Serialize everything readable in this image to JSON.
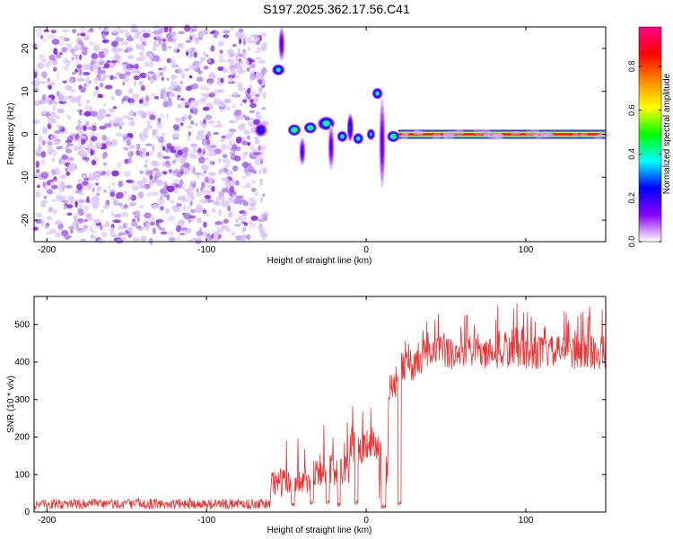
{
  "page": {
    "title": "S197.2025.362.17.56.C41"
  },
  "chart_data": [
    {
      "id": "spectrogram",
      "type": "heatmap",
      "xlabel": "Height of straight line (km)",
      "ylabel": "Frequency (Hz)",
      "xlim": [
        -208,
        150
      ],
      "ylim": [
        -25,
        25
      ],
      "xticks": [
        -200,
        -100,
        0,
        100
      ],
      "yticks": [
        -20,
        -10,
        0,
        10,
        20
      ],
      "colorbar": {
        "label": "Normalized spectral amplitude",
        "range": [
          0,
          0.98
        ],
        "ticks": [
          "0.0",
          "0.2",
          "0.4",
          "0.6",
          "0.8"
        ],
        "tick_values": [
          0,
          0.2,
          0.4,
          0.6,
          0.8
        ],
        "colors": [
          "#ffffff",
          "#8800ff",
          "#0000ff",
          "#00ffff",
          "#00ff00",
          "#ffff00",
          "#ff8800",
          "#ff0000",
          "#ff0088"
        ]
      },
      "noise_region": {
        "x": [
          -208,
          -63
        ],
        "y": [
          -25,
          25
        ],
        "amplitude": 0.2
      },
      "tone": {
        "x": [
          20,
          150
        ],
        "frequency": 0.0,
        "amplitude": 0.9
      },
      "blobs": [
        {
          "x": -66,
          "y": 1.0,
          "amp": 0.3,
          "sx": 3,
          "sy": 1.2
        },
        {
          "x": -55,
          "y": 15,
          "amp": 0.45,
          "sx": 3,
          "sy": 1.0
        },
        {
          "x": -53,
          "y": 21,
          "amp": 0.2,
          "sx": 1.5,
          "sy": 3
        },
        {
          "x": -45,
          "y": 1.0,
          "amp": 0.6,
          "sx": 3,
          "sy": 1.0
        },
        {
          "x": -40,
          "y": -4,
          "amp": 0.2,
          "sx": 1.5,
          "sy": 2.5
        },
        {
          "x": -35,
          "y": 1.5,
          "amp": 0.55,
          "sx": 3,
          "sy": 1.0
        },
        {
          "x": -25,
          "y": 2.5,
          "amp": 0.5,
          "sx": 4,
          "sy": 1.2
        },
        {
          "x": -22,
          "y": -3,
          "amp": 0.18,
          "sx": 1.5,
          "sy": 4
        },
        {
          "x": -15,
          "y": -0.5,
          "amp": 0.45,
          "sx": 2.5,
          "sy": 1.0
        },
        {
          "x": -10,
          "y": 1.5,
          "amp": 0.3,
          "sx": 1.5,
          "sy": 2.5
        },
        {
          "x": -5,
          "y": -1.0,
          "amp": 0.45,
          "sx": 2.5,
          "sy": 1.0
        },
        {
          "x": 3,
          "y": 0.0,
          "amp": 0.4,
          "sx": 2,
          "sy": 1.0
        },
        {
          "x": 7,
          "y": 9.5,
          "amp": 0.45,
          "sx": 2.5,
          "sy": 1.0
        },
        {
          "x": 10,
          "y": -2,
          "amp": 0.18,
          "sx": 1.5,
          "sy": 8
        },
        {
          "x": 17,
          "y": -0.5,
          "amp": 0.55,
          "sx": 3,
          "sy": 1.0
        }
      ]
    },
    {
      "id": "snr",
      "type": "line",
      "xlabel": "Height of straight line (km)",
      "ylabel": "SNR (10 * v/v)",
      "xlim": [
        -208,
        150
      ],
      "ylim": [
        0,
        575
      ],
      "xticks": [
        -200,
        -100,
        0,
        100
      ],
      "yticks": [
        0,
        100,
        200,
        300,
        400,
        500
      ],
      "color": "#ee3333",
      "segments": [
        {
          "x": [
            -208,
            -60
          ],
          "low": 8,
          "high": 35,
          "spike_prob": 0.05,
          "spike_high": 40
        },
        {
          "x": [
            -60,
            -35
          ],
          "low": 40,
          "high": 120,
          "spike_prob": 0.12,
          "spike_high": 210
        },
        {
          "x": [
            -35,
            -10
          ],
          "low": 70,
          "high": 160,
          "spike_prob": 0.15,
          "spike_high": 245
        },
        {
          "x": [
            -10,
            8
          ],
          "low": 130,
          "high": 220,
          "spike_prob": 0.12,
          "spike_high": 285
        },
        {
          "x": [
            14,
            22
          ],
          "low": 300,
          "high": 370,
          "spike_prob": 0.2,
          "spike_high": 400
        },
        {
          "x": [
            22,
            35
          ],
          "low": 350,
          "high": 430,
          "spike_prob": 0.2,
          "spike_high": 470
        },
        {
          "x": [
            35,
            150
          ],
          "low": 380,
          "high": 470,
          "spike_prob": 0.22,
          "spike_high": 560
        }
      ],
      "dropouts": [
        {
          "x": -46,
          "width": 2,
          "value": 15
        },
        {
          "x": -34,
          "width": 2,
          "value": 20
        },
        {
          "x": -24,
          "width": 2,
          "value": 20
        },
        {
          "x": -17,
          "width": 2,
          "value": 15
        },
        {
          "x": -6,
          "width": 2,
          "value": 20
        },
        {
          "x": 11,
          "width": 3,
          "value": 10
        },
        {
          "x": 21,
          "width": 2,
          "value": 18
        }
      ]
    }
  ]
}
